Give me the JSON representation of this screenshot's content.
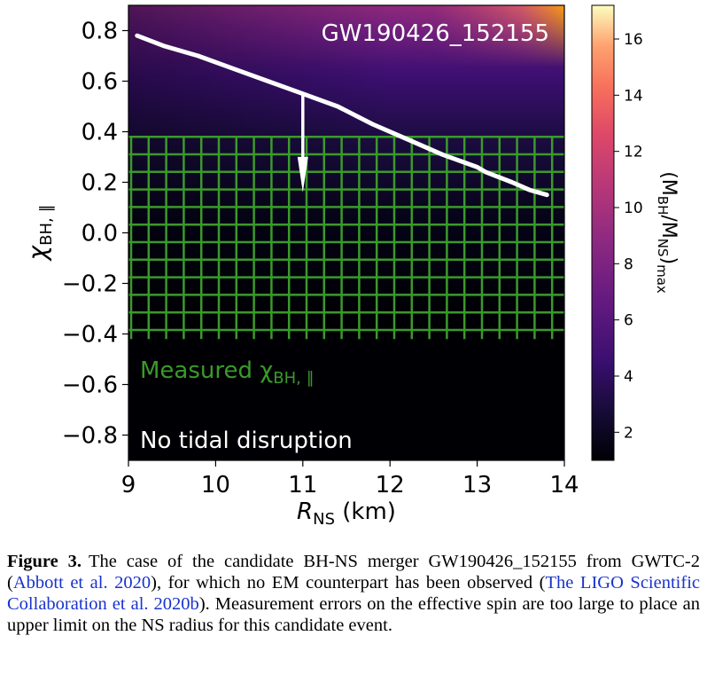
{
  "chart_data": {
    "type": "heatmap",
    "title": "GW190426_152155",
    "xlabel": "R",
    "xlabel_sub": "NS",
    "xlabel_unit": " (km)",
    "ylabel": "χ",
    "ylabel_sub": "BH, ∥",
    "xlim": [
      9,
      14
    ],
    "ylim": [
      -0.9,
      0.9
    ],
    "x_ticks": [
      9,
      10,
      11,
      12,
      13,
      14
    ],
    "y_ticks": [
      {
        "value": 0.8,
        "label": "0.8"
      },
      {
        "value": 0.6,
        "label": "0.6"
      },
      {
        "value": 0.4,
        "label": "0.4"
      },
      {
        "value": 0.2,
        "label": "0.2"
      },
      {
        "value": 0.0,
        "label": "0.0"
      },
      {
        "value": -0.2,
        "label": "−0.2"
      },
      {
        "value": -0.4,
        "label": "−0.4"
      },
      {
        "value": -0.6,
        "label": "−0.6"
      },
      {
        "value": -0.8,
        "label": "−0.8"
      }
    ],
    "colorbar": {
      "label_main": "(M",
      "label_sub1": "BH",
      "label_mid": "/M",
      "label_sub2": "NS",
      "label_close": ")",
      "label_sub3": "max",
      "range": [
        1,
        17.2
      ],
      "ticks": [
        2,
        4,
        6,
        8,
        10,
        12,
        14,
        16
      ],
      "colormap": "inferno"
    },
    "series": [
      {
        "x": [
          9.1,
          9.4,
          9.8,
          10.2,
          10.6,
          11.0,
          11.4,
          11.8,
          12.2,
          12.6,
          13.0,
          13.1,
          13.4,
          13.6,
          13.8
        ],
        "y": [
          0.78,
          0.74,
          0.7,
          0.65,
          0.6,
          0.55,
          0.5,
          0.43,
          0.37,
          0.31,
          0.26,
          0.24,
          0.2,
          0.17,
          0.15
        ]
      }
    ],
    "arrow": {
      "x": 11.0,
      "y_from": 0.55,
      "y_to": 0.16
    },
    "measured_band": {
      "y_min": -0.42,
      "y_max": 0.38,
      "color": "#3a9a2a"
    },
    "no_disruption_threshold": -0.42,
    "annotations": {
      "measured": "Measured χ",
      "measured_sub": "BH, ∥",
      "no_disruption": "No tidal disruption"
    }
  },
  "caption": {
    "label": "Figure 3.",
    "part1": "The case of the candidate BH-NS merger GW190426_152155 from GWTC-2 (",
    "cite1": "Abbott et al. 2020",
    "part2": "), for which no EM counterpart has been observed (",
    "cite2": "The LIGO Scientific Collaboration et al. 2020b",
    "part3": "). Measurement errors on the effective spin are too large to place an upper limit on the NS radius for this candidate event."
  }
}
